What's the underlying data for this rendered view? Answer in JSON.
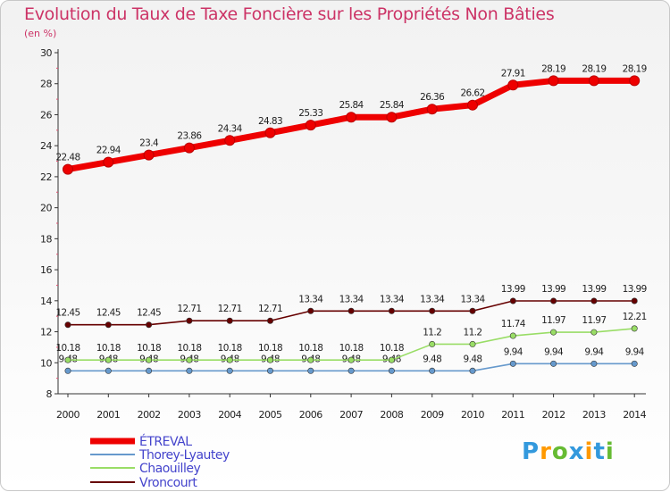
{
  "chart_data": {
    "type": "line",
    "title": "Evolution du Taux de Taxe Foncière sur les Propriétés Non Bâties",
    "unit_label": "(en %)",
    "xlabel": "",
    "ylabel": "(en %)",
    "ylim": [
      8,
      30
    ],
    "y_ticks": [
      "8",
      "10",
      "12",
      "14",
      "16",
      "18",
      "20",
      "22",
      "24",
      "26",
      "28",
      "30"
    ],
    "categories": [
      "2000",
      "2001",
      "2002",
      "2003",
      "2004",
      "2005",
      "2006",
      "2007",
      "2008",
      "2009",
      "2010",
      "2011",
      "2012",
      "2013",
      "2014"
    ],
    "series": [
      {
        "name": "ÉTREVAL",
        "color": "#ee0000",
        "values": [
          22.48,
          22.94,
          23.4,
          23.86,
          24.34,
          24.83,
          25.33,
          25.84,
          25.84,
          26.36,
          26.62,
          27.91,
          28.19,
          28.19,
          28.19
        ],
        "labels": [
          "22.48",
          "22.94",
          "23.4",
          "23.86",
          "24.34",
          "24.83",
          "25.33",
          "25.84",
          "25.84",
          "26.36",
          "26.62",
          "27.91",
          "28.19",
          "28.19",
          "28.19"
        ]
      },
      {
        "name": "Thorey-Lyautey",
        "color": "#6699cc",
        "values": [
          9.48,
          9.48,
          9.48,
          9.48,
          9.48,
          9.48,
          9.48,
          9.48,
          9.48,
          9.48,
          9.48,
          9.94,
          9.94,
          9.94,
          9.94
        ],
        "labels": [
          "9.48",
          "9.48",
          "9.48",
          "9.48",
          "9.48",
          "9.48",
          "9.48",
          "9.48",
          "9.48",
          "9.48",
          "9.48",
          "9.94",
          "9.94",
          "9.94",
          "9.94"
        ]
      },
      {
        "name": "Chaouilley",
        "color": "#99dd66",
        "values": [
          10.18,
          10.18,
          10.18,
          10.18,
          10.18,
          10.18,
          10.18,
          10.18,
          10.18,
          11.2,
          11.2,
          11.74,
          11.97,
          11.97,
          12.21
        ],
        "labels": [
          "10.18",
          "10.18",
          "10.18",
          "10.18",
          "10.18",
          "10.18",
          "10.18",
          "10.18",
          "10.18",
          "11.2",
          "11.2",
          "11.74",
          "11.97",
          "11.97",
          "12.21"
        ]
      },
      {
        "name": "Vroncourt",
        "color": "#660000",
        "values": [
          12.45,
          12.45,
          12.45,
          12.71,
          12.71,
          12.71,
          13.34,
          13.34,
          13.34,
          13.34,
          13.34,
          13.99,
          13.99,
          13.99,
          13.99
        ],
        "labels": [
          "12.45",
          "12.45",
          "12.45",
          "12.71",
          "12.71",
          "12.71",
          "13.34",
          "13.34",
          "13.34",
          "13.34",
          "13.34",
          "13.99",
          "13.99",
          "13.99",
          "13.99"
        ]
      }
    ],
    "grid": false,
    "legend": "bottom-left"
  },
  "branding": {
    "logo_letters": [
      "P",
      "r",
      "o",
      "x",
      "i",
      "t",
      "i"
    ],
    "logo_colors": [
      "#3399dd",
      "#ff9900",
      "#66bb33",
      "#3399dd",
      "#ff9900",
      "#3399dd",
      "#66bb33"
    ]
  }
}
